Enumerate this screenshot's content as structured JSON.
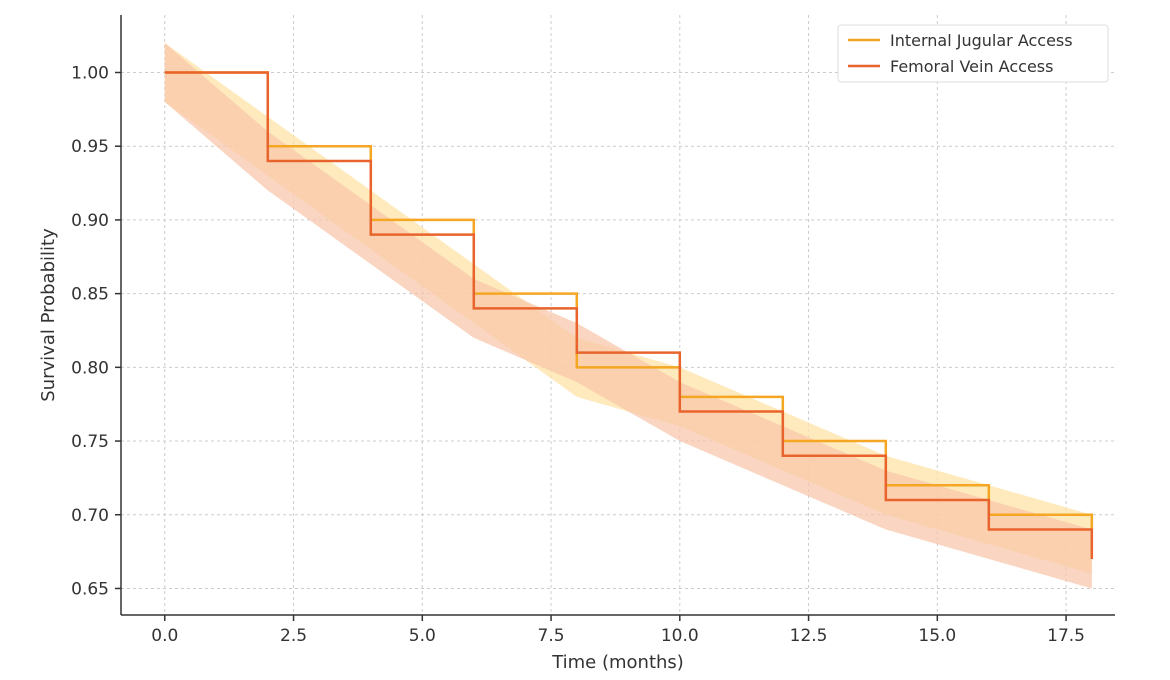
{
  "chart_data": {
    "type": "line",
    "subtype": "step (Kaplan-Meier) with confidence bands",
    "title": "",
    "xlabel": "Time (months)",
    "ylabel": "Survival Probability",
    "xlim": [
      -0.85,
      18.45
    ],
    "ylim": [
      0.632,
      1.039
    ],
    "xticks": [
      "0.0",
      "2.5",
      "5.0",
      "7.5",
      "10.0",
      "12.5",
      "15.0",
      "17.5"
    ],
    "yticks": [
      "0.65",
      "0.70",
      "0.75",
      "0.80",
      "0.85",
      "0.90",
      "0.95",
      "1.00"
    ],
    "grid": true,
    "legend_position": "top-right",
    "x": [
      0,
      2,
      4,
      6,
      8,
      10,
      12,
      14,
      16,
      18
    ],
    "series": [
      {
        "name": "Internal Jugular Access",
        "color": "#F5A623",
        "band_color": "#FFE3A8",
        "values": [
          1.0,
          0.95,
          0.9,
          0.85,
          0.8,
          0.78,
          0.75,
          0.72,
          0.7,
          0.69
        ],
        "ci_lower": [
          0.98,
          0.93,
          0.88,
          0.83,
          0.78,
          0.76,
          0.73,
          0.7,
          0.68,
          0.66
        ],
        "ci_upper": [
          1.02,
          0.97,
          0.92,
          0.87,
          0.82,
          0.8,
          0.77,
          0.74,
          0.72,
          0.7
        ]
      },
      {
        "name": "Femoral Vein Access",
        "color": "#E8642C",
        "band_color": "#F8C4A8",
        "values": [
          1.0,
          0.94,
          0.89,
          0.84,
          0.81,
          0.77,
          0.74,
          0.71,
          0.69,
          0.67
        ],
        "ci_lower": [
          0.98,
          0.92,
          0.87,
          0.82,
          0.79,
          0.75,
          0.72,
          0.69,
          0.67,
          0.65
        ],
        "ci_upper": [
          1.02,
          0.96,
          0.91,
          0.86,
          0.83,
          0.79,
          0.76,
          0.73,
          0.71,
          0.69
        ]
      }
    ]
  }
}
